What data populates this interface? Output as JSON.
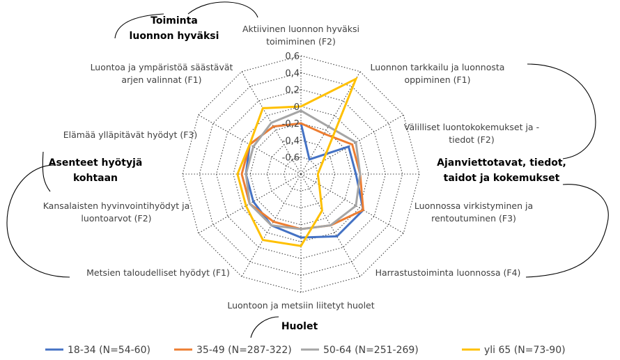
{
  "chart_data": {
    "type": "radar",
    "axis_range": [
      -0.8,
      0.6
    ],
    "ticks": [
      "0,6",
      "0,4",
      "0,2",
      "0",
      "-0,2",
      "-0,4",
      "-0,6"
    ],
    "tick_values": [
      0.6,
      0.4,
      0.2,
      0,
      -0.2,
      -0.4,
      -0.6
    ],
    "grid_levels": [
      0.6,
      0.4,
      0.2,
      0,
      -0.2,
      -0.4,
      -0.6,
      -0.8
    ],
    "axes": [
      [
        "Aktiivinen luonnon hyväksi",
        "toimiminen (F2)"
      ],
      [
        "Luonnon tarkkailu ja luonnosta",
        "oppiminen (F1)"
      ],
      [
        "Välilliset luontokokemukset ja -",
        "tiedot (F2)"
      ],
      [
        "Ajanviettotavat-spacer"
      ],
      [
        "Luonnossa virkistyminen ja",
        "rentoutuminen (F3)"
      ],
      [
        "Harrastustoiminta luonnossa (F4)"
      ],
      [
        "Luontoon ja metsiin liitetyt huolet"
      ],
      [
        "Metsien taloudelliset hyödyt (F1)"
      ],
      [
        "Kansalaisten hyvinvointihyödyt  ja",
        "luontoarvot (F2)"
      ],
      [
        "Asenteet-spacer"
      ],
      [
        "Elämää ylläpitävät hyödyt (F3)"
      ],
      [
        "Luontoa ja ympäristöä säästävät",
        "arjen valinnat (F1)"
      ]
    ],
    "series": [
      {
        "name": "18-34 (N=54-60)",
        "color": "#4472C4",
        "values": [
          -0.2,
          -0.6,
          -0.15,
          -0.15,
          0.05,
          0.05,
          -0.05,
          -0.1,
          -0.15,
          -0.15,
          -0.1,
          -0.15
        ]
      },
      {
        "name": "35-49 (N=287-322)",
        "color": "#ED7D31",
        "values": [
          -0.2,
          -0.25,
          -0.1,
          -0.1,
          0.05,
          -0.1,
          -0.15,
          -0.15,
          -0.1,
          -0.1,
          -0.1,
          -0.15
        ]
      },
      {
        "name": "50-64 (N=251-269)",
        "color": "#A5A5A5",
        "values": [
          -0.05,
          -0.15,
          -0.05,
          -0.1,
          -0.05,
          -0.1,
          -0.15,
          -0.1,
          -0.1,
          -0.15,
          -0.15,
          -0.1
        ]
      },
      {
        "name": "yli 65 (N=73-90)",
        "color": "#FFC000",
        "values": [
          0.0,
          0.5,
          -0.5,
          -0.6,
          -0.55,
          -0.3,
          0.05,
          0.1,
          -0.05,
          -0.05,
          -0.1,
          0.1
        ]
      }
    ],
    "groups": [
      {
        "lines": [
          "Toiminta",
          "luonnon hyväksi"
        ]
      },
      {
        "lines": [
          "Ajanviettotavat, tiedot,",
          "taidot ja kokemukset"
        ]
      },
      {
        "lines": [
          "Huolet"
        ]
      },
      {
        "lines": [
          "Asenteet hyötyjä",
          "kohtaan"
        ]
      }
    ],
    "legend_position": "bottom"
  }
}
